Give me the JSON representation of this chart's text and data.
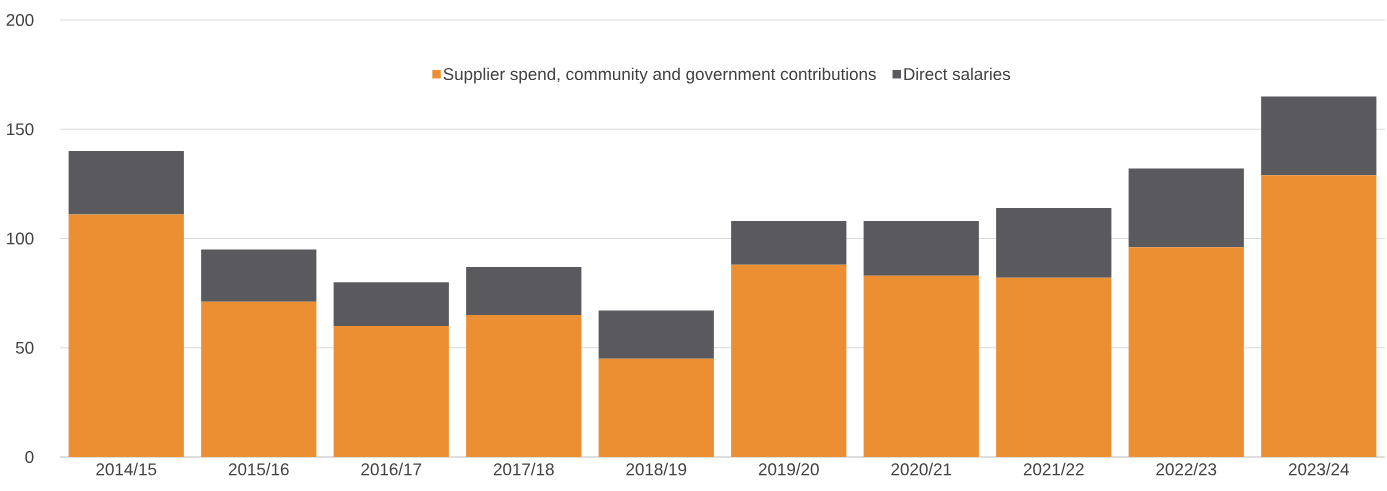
{
  "chart_data": {
    "type": "bar",
    "stacked": true,
    "categories": [
      "2014/15",
      "2015/16",
      "2016/17",
      "2017/18",
      "2018/19",
      "2019/20",
      "2020/21",
      "2021/22",
      "2022/23",
      "2023/24"
    ],
    "series": [
      {
        "name": "Supplier spend, community and government contributions",
        "color": "#ec8f33",
        "values": [
          111,
          71,
          60,
          65,
          45,
          88,
          83,
          82,
          96,
          129
        ]
      },
      {
        "name": "Direct salaries",
        "color": "#5a5a5e",
        "values": [
          29,
          24,
          20,
          22,
          22,
          20,
          25,
          32,
          36,
          36
        ]
      }
    ],
    "ylim": [
      0,
      200
    ],
    "yticks": [
      0,
      50,
      100,
      150,
      200
    ],
    "grid": "y",
    "legend": "top"
  }
}
